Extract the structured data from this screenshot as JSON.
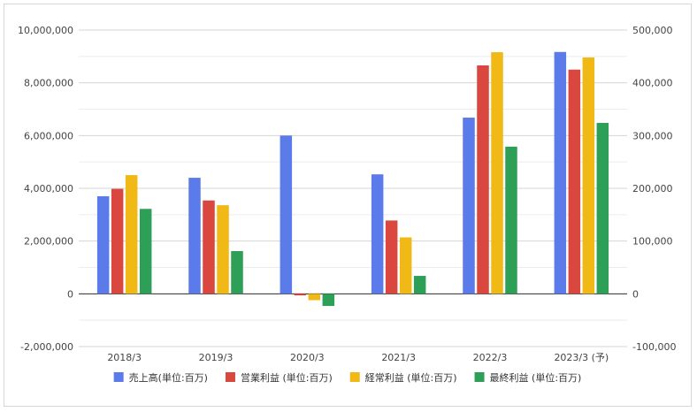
{
  "chart_data": {
    "type": "bar",
    "categories": [
      "2018/3",
      "2019/3",
      "2020/3",
      "2021/3",
      "2022/3",
      "2023/3 (予)"
    ],
    "series": [
      {
        "name": "売上高(単位:百万)",
        "axis": "left",
        "color": "#5b7bea",
        "values": [
          3700000,
          4400000,
          6000000,
          4530000,
          6680000,
          9170000
        ]
      },
      {
        "name": "営業利益 (単位:百万)",
        "axis": "right",
        "color": "#d9473f",
        "values": [
          199000,
          177000,
          -3000,
          139000,
          433000,
          425000
        ]
      },
      {
        "name": "経常利益 (単位:百万)",
        "axis": "right",
        "color": "#f0b916",
        "values": [
          225000,
          168000,
          -12000,
          107000,
          458000,
          448000
        ]
      },
      {
        "name": "最終利益 (単位:百万)",
        "axis": "right",
        "color": "#2e9f56",
        "values": [
          161000,
          81000,
          -23000,
          34000,
          279000,
          324000
        ]
      }
    ],
    "y_left": {
      "ylim": [
        -2000000,
        10000000
      ],
      "ticks": [
        -2000000,
        0,
        2000000,
        4000000,
        6000000,
        8000000,
        10000000
      ],
      "tick_labels": [
        "-2,000,000",
        "0",
        "2,000,000",
        "4,000,000",
        "6,000,000",
        "8,000,000",
        "10,000,000"
      ]
    },
    "y_right": {
      "ylim": [
        -100000,
        500000
      ],
      "ticks": [
        -100000,
        0,
        100000,
        200000,
        300000,
        400000,
        500000
      ],
      "tick_labels": [
        "-100,000",
        "0",
        "100,000",
        "200,000",
        "300,000",
        "400,000",
        "500,000"
      ]
    },
    "grid": true,
    "legend_position": "bottom"
  }
}
